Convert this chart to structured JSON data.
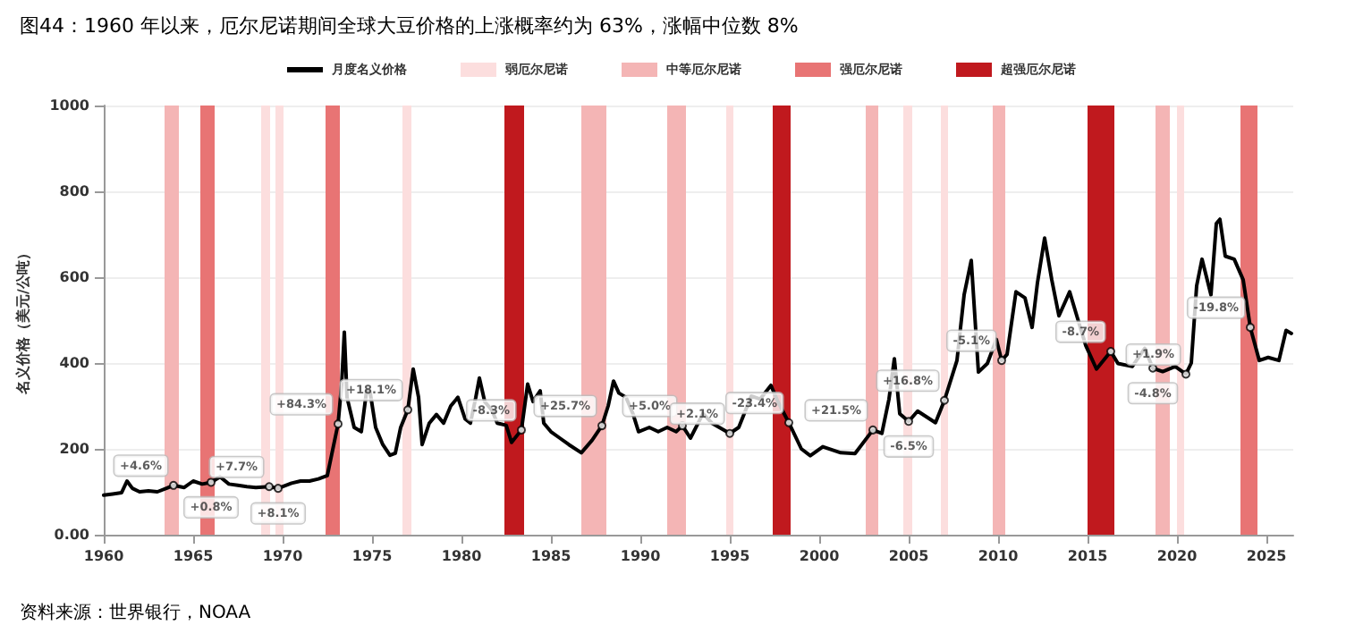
{
  "chart_data": {
    "type": "line",
    "title": "图44：1960 年以来，厄尔尼诺期间全球大豆价格的上涨概率约为 63%，涨幅中位数 8%",
    "ylabel": "名义价格（美元/公吨）",
    "xlim": [
      1960,
      2026.5
    ],
    "xticks": [
      1960,
      1965,
      1970,
      1975,
      1980,
      1985,
      1990,
      1995,
      2000,
      2005,
      2010,
      2015,
      2020,
      2025
    ],
    "ylim": [
      0,
      1000
    ],
    "yticks": [
      {
        "value": 0,
        "label": "0.00"
      },
      200,
      400,
      600,
      800,
      1000
    ],
    "grid": "y",
    "legend": "top",
    "marker": "none",
    "line_style": "solid",
    "series": [
      {
        "name": "月度名义价格",
        "color": "#000000",
        "x": [
          1960,
          1960.5,
          1961,
          1961.3,
          1961.6,
          1962,
          1962.5,
          1963,
          1963.5,
          1963.9,
          1964.5,
          1965,
          1965.5,
          1966,
          1966.5,
          1967,
          1967.5,
          1968,
          1968.5,
          1969.25,
          1969.75,
          1970.5,
          1971,
          1971.5,
          1972,
          1972.5,
          1973.1,
          1973.3,
          1973.45,
          1973.6,
          1974,
          1974.4,
          1974.7,
          1974.9,
          1975.2,
          1975.6,
          1976,
          1976.3,
          1976.6,
          1977,
          1977.3,
          1977.6,
          1977.8,
          1978.2,
          1978.6,
          1979,
          1979.4,
          1979.8,
          1980.2,
          1980.5,
          1980.8,
          1981,
          1981.3,
          1981.7,
          1982,
          1982.5,
          1982.8,
          1983.35,
          1983.7,
          1984,
          1984.4,
          1984.6,
          1985,
          1985.5,
          1986,
          1986.7,
          1987.3,
          1987.85,
          1988.2,
          1988.5,
          1988.8,
          1989.2,
          1989.6,
          1989.9,
          1990.5,
          1991,
          1991.5,
          1992,
          1992.35,
          1992.8,
          1993.5,
          1994,
          1995,
          1995.5,
          1996.2,
          1996.7,
          1997.3,
          1997.7,
          1998.3,
          1999,
          1999.5,
          2000.2,
          2001.2,
          2002,
          2003,
          2003.5,
          2003.9,
          2004.2,
          2004.5,
          2005,
          2005.5,
          2006.5,
          2007,
          2007.7,
          2008.1,
          2008.5,
          2008.9,
          2009.4,
          2009.9,
          2010.2,
          2010.5,
          2011,
          2011.5,
          2011.9,
          2012.2,
          2012.6,
          2013,
          2013.4,
          2014,
          2014.4,
          2014.9,
          2015.5,
          2016.3,
          2016.7,
          2017.5,
          2018.2,
          2018.65,
          2019.2,
          2019.9,
          2020.5,
          2020.8,
          2021.1,
          2021.4,
          2021.9,
          2022.2,
          2022.4,
          2022.7,
          2023.2,
          2023.7,
          2024.1,
          2024.6,
          2025.1,
          2025.7,
          2026.1,
          2026.4
        ],
        "values": [
          92,
          95,
          98,
          125,
          108,
          100,
          102,
          100,
          108,
          115,
          110,
          125,
          118,
          122,
          135,
          118,
          115,
          112,
          110,
          112,
          108,
          120,
          125,
          125,
          130,
          138,
          258,
          350,
          472,
          320,
          250,
          240,
          337,
          330,
          250,
          210,
          185,
          190,
          250,
          291,
          386,
          320,
          210,
          260,
          280,
          260,
          300,
          320,
          270,
          260,
          320,
          365,
          310,
          290,
          260,
          255,
          215,
          244,
          351,
          310,
          335,
          260,
          240,
          225,
          210,
          191,
          220,
          254,
          300,
          358,
          330,
          320,
          280,
          240,
          250,
          240,
          250,
          240,
          254,
          225,
          282,
          260,
          236,
          250,
          323,
          316,
          348,
          309,
          261,
          200,
          184,
          205,
          191,
          189,
          244,
          236,
          316,
          410,
          282,
          264,
          288,
          261,
          313,
          406,
          559,
          639,
          379,
          399,
          455,
          406,
          420,
          566,
          552,
          483,
          587,
          691,
          594,
          510,
          566,
          510,
          441,
          386,
          427,
          399,
          392,
          434,
          388,
          380,
          392,
          374,
          400,
          580,
          642,
          559,
          725,
          735,
          649,
          642,
          594,
          483,
          406,
          413,
          406,
          476,
          469
        ]
      }
    ],
    "bands": [
      {
        "axis": "x",
        "from": 1963.4,
        "to": 1964.2,
        "label": "中等厄尔尼诺",
        "color": "#f4b5b5"
      },
      {
        "axis": "x",
        "from": 1965.4,
        "to": 1966.2,
        "label": "强厄尔尼诺",
        "color": "#e87474"
      },
      {
        "axis": "x",
        "from": 1968.8,
        "to": 1969.3,
        "label": "弱厄尔尼诺",
        "color": "#fcdede"
      },
      {
        "axis": "x",
        "from": 1969.6,
        "to": 1970.05,
        "color": "#fcdede"
      },
      {
        "axis": "x",
        "from": 1972.4,
        "to": 1973.2,
        "color": "#e87474"
      },
      {
        "axis": "x",
        "from": 1976.7,
        "to": 1977.2,
        "color": "#fcdede"
      },
      {
        "axis": "x",
        "from": 1982.4,
        "to": 1983.5,
        "label": "超强厄尔尼诺",
        "color": "#c0191e"
      },
      {
        "axis": "x",
        "from": 1986.7,
        "to": 1988.1,
        "color": "#f4b5b5"
      },
      {
        "axis": "x",
        "from": 1991.5,
        "to": 1992.55,
        "color": "#f4b5b5"
      },
      {
        "axis": "x",
        "from": 1994.8,
        "to": 1995.2,
        "color": "#fcdede"
      },
      {
        "axis": "x",
        "from": 1997.4,
        "to": 1998.4,
        "color": "#c0191e"
      },
      {
        "axis": "x",
        "from": 2002.6,
        "to": 2003.3,
        "color": "#f4b5b5"
      },
      {
        "axis": "x",
        "from": 2004.7,
        "to": 2005.2,
        "color": "#fcdede"
      },
      {
        "axis": "x",
        "from": 2006.8,
        "to": 2007.2,
        "color": "#fcdede"
      },
      {
        "axis": "x",
        "from": 2009.7,
        "to": 2010.4,
        "color": "#f4b5b5"
      },
      {
        "axis": "x",
        "from": 2015.0,
        "to": 2016.5,
        "color": "#c0191e"
      },
      {
        "axis": "x",
        "from": 2018.8,
        "to": 2019.6,
        "color": "#f4b5b5"
      },
      {
        "axis": "x",
        "from": 2020.0,
        "to": 2020.4,
        "color": "#fcdede"
      },
      {
        "axis": "x",
        "from": 2023.55,
        "to": 2024.5,
        "color": "#e87474"
      }
    ],
    "annotations": [
      {
        "text": "+4.6%",
        "x": 1963.9,
        "y": 115
      },
      {
        "text": "+0.8%",
        "x": 1966,
        "y": 122
      },
      {
        "text": "+7.7%",
        "x": 1969.25,
        "y": 112
      },
      {
        "text": "+8.1%",
        "x": 1969.75,
        "y": 108
      },
      {
        "text": "+84.3%",
        "x": 1973.1,
        "y": 258
      },
      {
        "text": "+18.1%",
        "x": 1977,
        "y": 291
      },
      {
        "text": "-8.3%",
        "x": 1983.35,
        "y": 244
      },
      {
        "text": "+25.7%",
        "x": 1987.85,
        "y": 254
      },
      {
        "text": "+5.0%",
        "x": 1992.35,
        "y": 254
      },
      {
        "text": "+2.1%",
        "x": 1995,
        "y": 236
      },
      {
        "text": "-23.4%",
        "x": 1998.3,
        "y": 261
      },
      {
        "text": "+21.5%",
        "x": 2003,
        "y": 244
      },
      {
        "text": "-6.5%",
        "x": 2005,
        "y": 264
      },
      {
        "text": "+16.8%",
        "x": 2007,
        "y": 313
      },
      {
        "text": "-5.1%",
        "x": 2010.2,
        "y": 406
      },
      {
        "text": "-8.7%",
        "x": 2016.3,
        "y": 427
      },
      {
        "text": "-4.8%",
        "x": 2018.65,
        "y": 388
      },
      {
        "text": "+1.9%",
        "x": 2020.5,
        "y": 374
      },
      {
        "text": "-19.8%",
        "x": 2024.1,
        "y": 483
      },
      "资料来源：世界银行，NOAA"
    ]
  }
}
